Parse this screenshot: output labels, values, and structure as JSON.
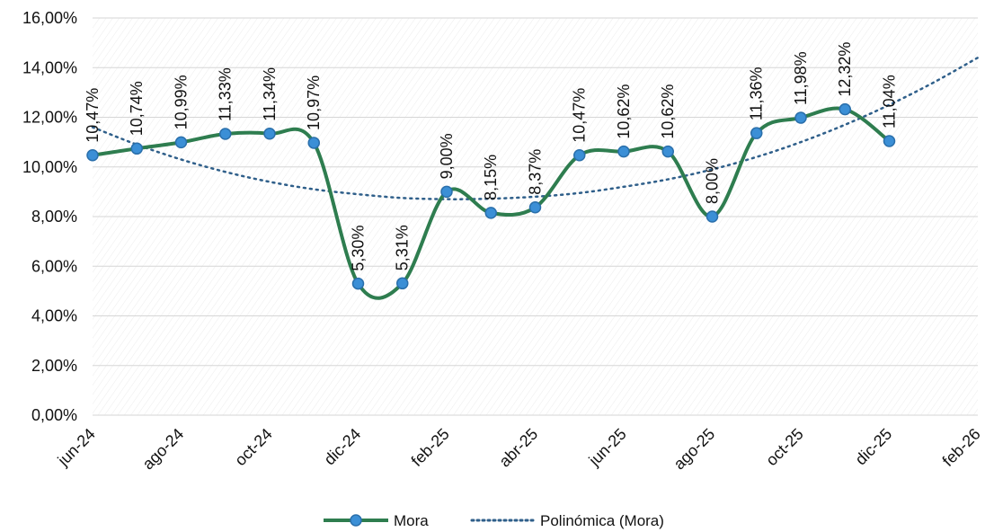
{
  "chart_data": {
    "type": "line",
    "title": "",
    "xlabel": "",
    "ylabel": "",
    "ylim": [
      0,
      16
    ],
    "y_ticks": [
      "0,00%",
      "2,00%",
      "4,00%",
      "6,00%",
      "8,00%",
      "10,00%",
      "12,00%",
      "14,00%",
      "16,00%"
    ],
    "x_ticks": [
      "jun-24",
      "ago-24",
      "oct-24",
      "dic-24",
      "feb-25",
      "abr-25",
      "jun-25",
      "ago-25",
      "oct-25",
      "dic-25",
      "feb-26"
    ],
    "x_range": [
      "2024-06",
      "2026-02"
    ],
    "grid": true,
    "legend_position": "bottom",
    "series": [
      {
        "name": "Mora",
        "style": "solid line with circle markers",
        "color": "#2e7d4f",
        "marker_color": "#3b8fd6",
        "x": [
          "2024-06",
          "2024-07",
          "2024-08",
          "2024-09",
          "2024-10",
          "2024-11",
          "2024-12",
          "2025-01",
          "2025-02",
          "2025-03",
          "2025-04",
          "2025-05",
          "2025-06",
          "2025-07",
          "2025-08",
          "2025-09",
          "2025-10",
          "2025-11",
          "2025-12"
        ],
        "values": [
          10.47,
          10.74,
          10.99,
          11.33,
          11.34,
          10.97,
          5.3,
          5.31,
          9.0,
          8.15,
          8.37,
          10.47,
          10.62,
          10.62,
          8.0,
          11.36,
          11.98,
          12.32,
          11.04
        ],
        "labels": [
          "10,47%",
          "10,74%",
          "10,99%",
          "11,33%",
          "11,34%",
          "10,97%",
          "5,30%",
          "5,31%",
          "9,00%",
          "8,15%",
          "8,37%",
          "10,47%",
          "10,62%",
          "10,62%",
          "8,00%",
          "11,36%",
          "11,98%",
          "12,32%",
          "11,04%"
        ]
      },
      {
        "name": "Polinómica (Mora)",
        "style": "dotted trendline",
        "color": "#2f5f8a",
        "x": [
          "2024-06",
          "2024-07",
          "2024-08",
          "2024-09",
          "2024-10",
          "2024-11",
          "2024-12",
          "2025-01",
          "2025-02",
          "2025-03",
          "2025-04",
          "2025-05",
          "2025-06",
          "2025-07",
          "2025-08",
          "2025-09",
          "2025-10",
          "2025-11",
          "2025-12",
          "2026-01",
          "2026-02"
        ],
        "values": [
          11.6,
          10.9,
          10.3,
          9.8,
          9.4,
          9.1,
          8.9,
          8.75,
          8.7,
          8.72,
          8.8,
          8.95,
          9.2,
          9.5,
          9.9,
          10.4,
          11.0,
          11.7,
          12.5,
          13.4,
          14.4
        ]
      }
    ]
  }
}
